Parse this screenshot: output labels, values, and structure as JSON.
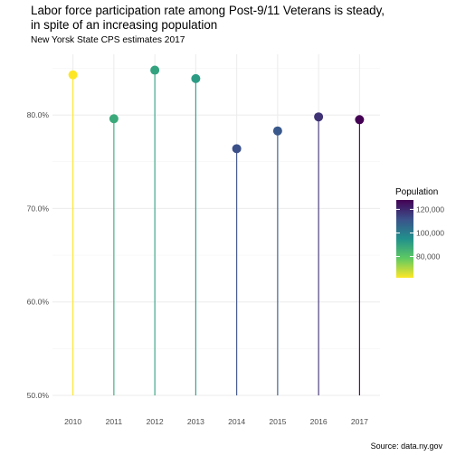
{
  "title": {
    "line1": "Labor force participation rate among Post-9/11 Veterans is steady,",
    "line2": "in spite of an increasing population"
  },
  "subtitle": "New Yorsk State CPS estimates 2017",
  "caption": "Source: data.ny.gov",
  "chart_data": {
    "type": "lollipop",
    "title": "Labor force participation rate among Post-9/11 Veterans is steady, in spite of an increasing population",
    "xlabel": "",
    "ylabel": "",
    "categories": [
      "2010",
      "2011",
      "2012",
      "2013",
      "2014",
      "2015",
      "2016",
      "2017"
    ],
    "values": [
      84.3,
      79.6,
      84.8,
      83.9,
      76.4,
      78.3,
      79.8,
      79.5
    ],
    "population": [
      62000,
      88000,
      90000,
      92000,
      112000,
      110000,
      118000,
      128000
    ],
    "ylim": [
      50,
      86.5
    ],
    "yticks": [
      50,
      60,
      70,
      80
    ],
    "ytick_labels": [
      "50.0%",
      "60.0%",
      "70.0%",
      "80.0%"
    ],
    "baseline": 50,
    "grid": true,
    "legend": {
      "title": "Population",
      "placement": "right",
      "min": 62000,
      "max": 128000,
      "ticks": [
        80000,
        100000,
        120000
      ],
      "tick_labels": [
        "80,000",
        "100,000",
        "120,000"
      ],
      "colormap": "viridis-reversed"
    }
  }
}
